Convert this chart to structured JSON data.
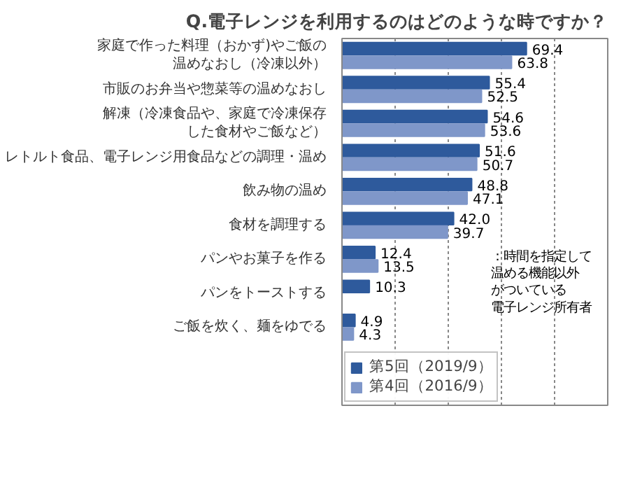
{
  "chart_data": {
    "type": "bar",
    "orientation": "horizontal",
    "title": "Q.電子レンジを利用するのはどのような時ですか？",
    "categories": [
      "家庭で作った料理（おかず)やご飯の温めなおし（冷凍以外）",
      "市販のお弁当や惣菜等の温めなおし",
      "解凍（冷凍食品や、家庭で冷凍保存した食材やご飯など）",
      "レトルト食品、電子レンジ用食品などの調理・温め",
      "飲み物の温め",
      "食材を調理する",
      "パンやお菓子を作る",
      "パンをトーストする",
      "ご飯を炊く、麺をゆでる"
    ],
    "series": [
      {
        "name": "第5回（2019/9）",
        "color": "#2e5a9c",
        "values": [
          69.4,
          55.4,
          54.6,
          51.6,
          48.8,
          42.0,
          12.4,
          10.3,
          4.9
        ],
        "value_labels": [
          "69.4",
          "55.4",
          "54.6",
          "51.6",
          "48.8",
          "42.0",
          "12.4",
          "10.3",
          "4.9"
        ]
      },
      {
        "name": "第4回（2016/9）",
        "color": "#7f97c9",
        "values": [
          63.8,
          52.5,
          53.6,
          50.7,
          47.1,
          39.7,
          13.5,
          null,
          4.3
        ],
        "value_labels": [
          "63.8",
          "52.5",
          "53.6",
          "50.7",
          "47.1",
          "39.7",
          "13.5",
          null,
          "4.3"
        ]
      }
    ],
    "xlim": [
      0,
      100
    ],
    "xticks": [
      {
        "value": 0,
        "label": null
      },
      {
        "value": 20,
        "label": null
      },
      {
        "value": 40,
        "label": null
      },
      {
        "value": 60,
        "label": null
      },
      {
        "value": 80,
        "label": null
      },
      {
        "value": 100,
        "label": null
      }
    ],
    "grid": "x",
    "tick_labels": "y",
    "legend": "bottom left",
    "annotations": [
      "：時間を指定して",
      "温める機能以外",
      "がついている",
      "電子レンジ所有者"
    ]
  }
}
